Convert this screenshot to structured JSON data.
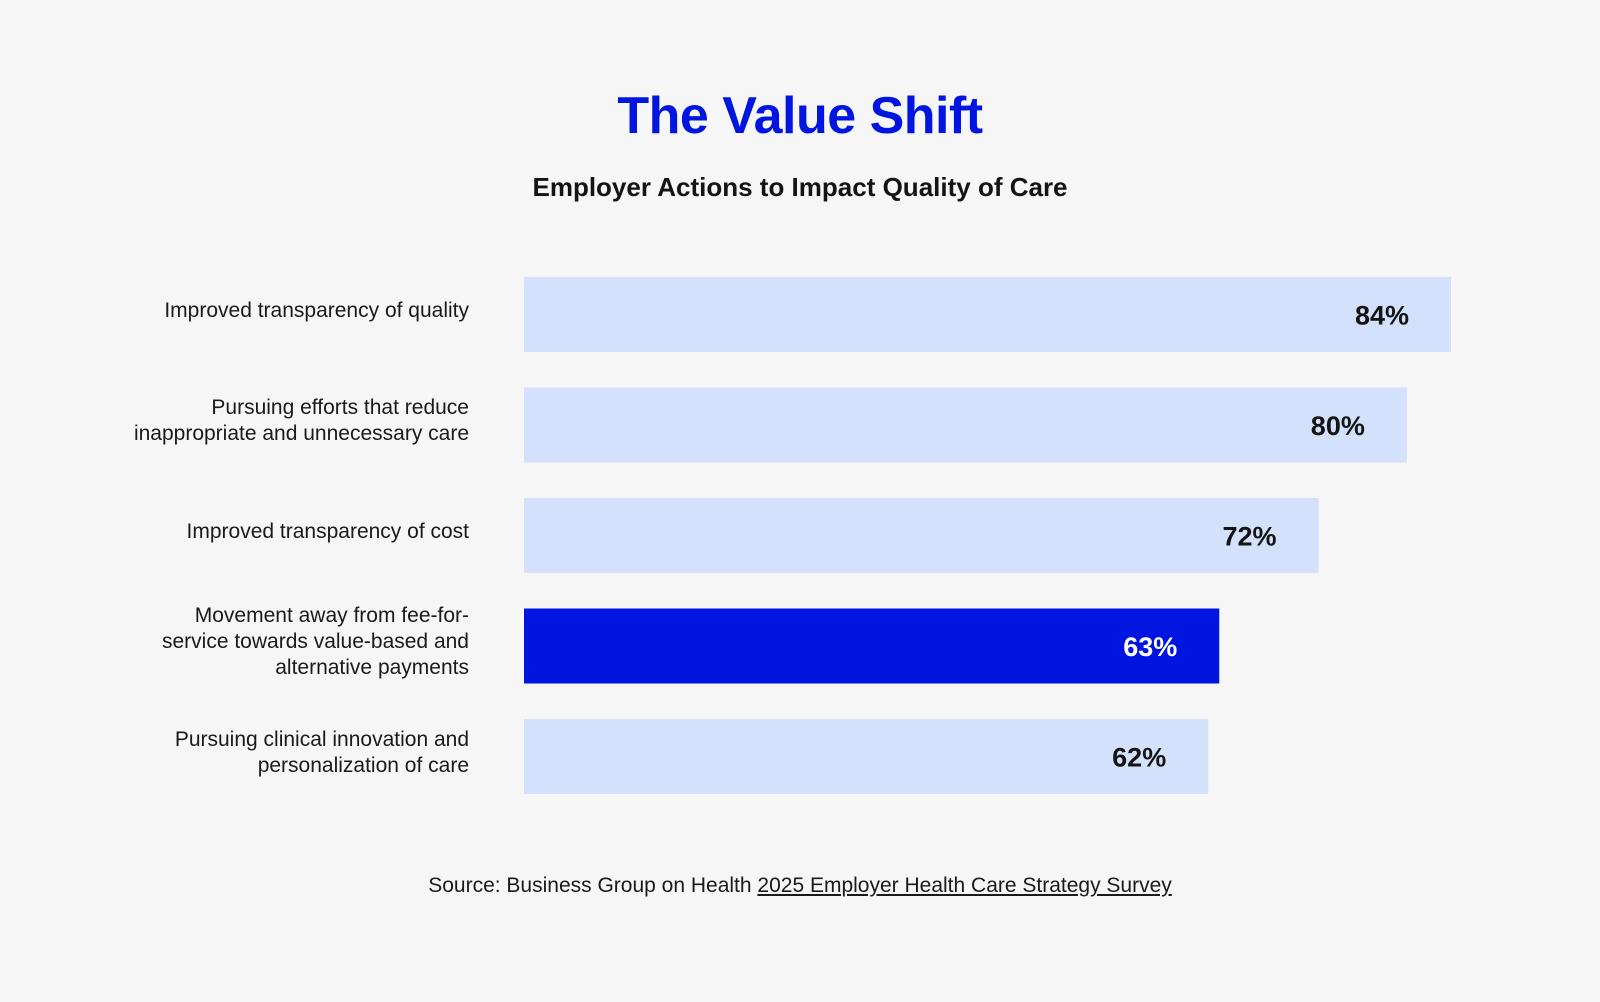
{
  "chart_data": {
    "type": "bar",
    "orientation": "horizontal",
    "title": "The Value Shift",
    "subtitle": "Employer Actions to Impact Quality of Care",
    "categories": [
      [
        "Improved transparency of quality"
      ],
      [
        "Pursuing efforts that reduce",
        "inappropriate and unnecessary care"
      ],
      [
        "Improved transparency of cost"
      ],
      [
        "Movement away from fee-for-",
        "service towards value-based and",
        "alternative payments"
      ],
      [
        "Pursuing clinical innovation and",
        "personalization of care"
      ]
    ],
    "values": [
      84,
      80,
      72,
      63,
      62
    ],
    "value_labels": [
      "84%",
      "80%",
      "72%",
      "63%",
      "62%"
    ],
    "highlight_index": 3,
    "xlim": [
      0,
      84
    ],
    "grid": false,
    "legend": "none",
    "colors": {
      "bar": "#d3e1fc",
      "bar_highlight": "#0015e0",
      "label_text": "#141414",
      "label_text_highlight": "#ffffff"
    }
  },
  "footer": {
    "source_prefix": "Source: Business Group on Health ",
    "source_link": "2025 Employer Health Care Strategy Survey"
  }
}
